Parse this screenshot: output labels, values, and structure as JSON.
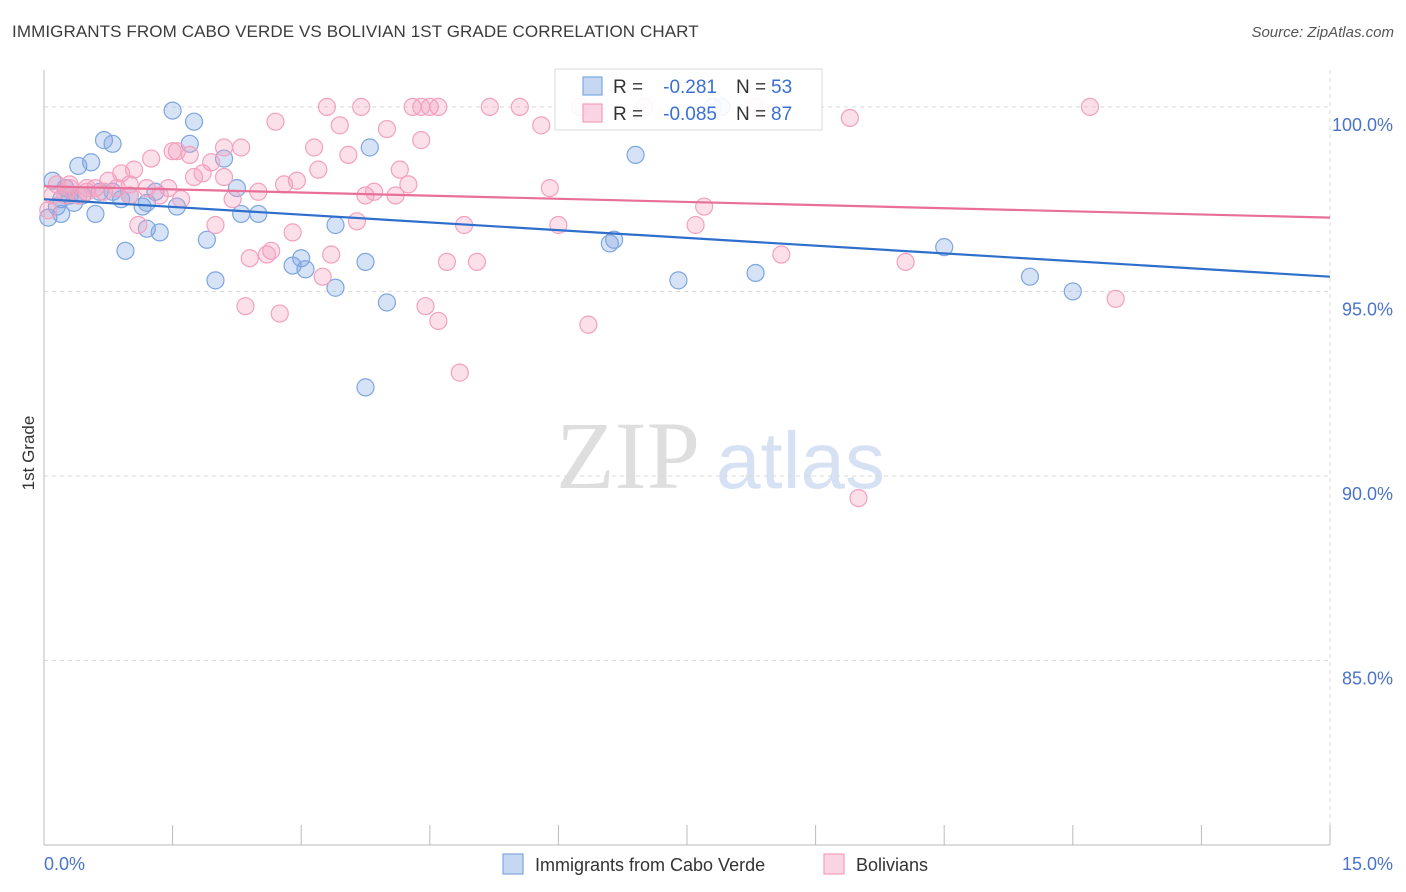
{
  "title": "IMMIGRANTS FROM CABO VERDE VS BOLIVIAN 1ST GRADE CORRELATION CHART",
  "source": "Source: ZipAtlas.com",
  "watermark": {
    "zip": "ZIP",
    "atlas": "atlas"
  },
  "chart_data": {
    "type": "scatter",
    "xlabel": "",
    "ylabel": "1st Grade",
    "xlim": [
      0.0,
      15.0
    ],
    "ylim": [
      80.0,
      101.0
    ],
    "x_tick_labels": [
      {
        "value": 0.0,
        "label": "0.0%"
      },
      {
        "value": 15.0,
        "label": "15.0%"
      }
    ],
    "x_minor_ticks": [
      1.5,
      3.0,
      4.5,
      6.0,
      7.5,
      9.0,
      10.5,
      12.0,
      13.5
    ],
    "y_ticks": [
      {
        "value": 100.0,
        "label": "100.0%"
      },
      {
        "value": 95.0,
        "label": "95.0%"
      },
      {
        "value": 90.0,
        "label": "90.0%"
      },
      {
        "value": 85.0,
        "label": "85.0%"
      }
    ],
    "grid": "horizontal dashed",
    "legend_position": "bottom-center",
    "series": [
      {
        "name": "Immigrants from Cabo Verde",
        "color": "#7ea6e0",
        "line_color": "#2e6fcc",
        "R": "-0.281",
        "N": "53",
        "trend": {
          "x0": 0.0,
          "y0": 97.5,
          "x1": 15.0,
          "y1": 95.4
        },
        "points": [
          [
            0.05,
            97.0
          ],
          [
            0.1,
            98.0
          ],
          [
            0.15,
            97.3
          ],
          [
            0.2,
            97.1
          ],
          [
            0.25,
            97.8
          ],
          [
            0.3,
            97.6
          ],
          [
            0.35,
            97.4
          ],
          [
            0.4,
            98.4
          ],
          [
            0.45,
            97.6
          ],
          [
            0.55,
            98.5
          ],
          [
            0.6,
            97.1
          ],
          [
            0.7,
            99.1
          ],
          [
            0.8,
            99.0
          ],
          [
            0.9,
            97.5
          ],
          [
            0.8,
            97.7
          ],
          [
            0.95,
            96.1
          ],
          [
            1.15,
            97.3
          ],
          [
            1.2,
            97.4
          ],
          [
            1.3,
            97.7
          ],
          [
            1.35,
            96.6
          ],
          [
            1.5,
            99.9
          ],
          [
            1.55,
            97.3
          ],
          [
            1.7,
            99.0
          ],
          [
            1.75,
            99.6
          ],
          [
            1.9,
            96.4
          ],
          [
            2.0,
            95.3
          ],
          [
            2.1,
            98.6
          ],
          [
            2.25,
            97.8
          ],
          [
            2.3,
            97.1
          ],
          [
            2.5,
            97.1
          ],
          [
            2.9,
            95.7
          ],
          [
            3.0,
            95.9
          ],
          [
            3.05,
            95.6
          ],
          [
            3.4,
            96.8
          ],
          [
            3.4,
            95.1
          ],
          [
            3.75,
            95.8
          ],
          [
            3.8,
            98.9
          ],
          [
            4.0,
            94.7
          ],
          [
            3.75,
            92.4
          ],
          [
            6.6,
            96.3
          ],
          [
            6.65,
            96.4
          ],
          [
            6.9,
            98.7
          ],
          [
            7.4,
            95.3
          ],
          [
            7.8,
            100.0
          ],
          [
            7.9,
            100.0
          ],
          [
            8.3,
            95.5
          ],
          [
            10.5,
            96.2
          ],
          [
            11.5,
            95.4
          ],
          [
            12.0,
            95.0
          ],
          [
            1.2,
            96.7
          ],
          [
            1.0,
            97.6
          ],
          [
            0.2,
            97.5
          ],
          [
            0.65,
            97.7
          ]
        ]
      },
      {
        "name": "Bolivians",
        "color": "#f4a0bf",
        "line_color": "#e86f98",
        "R": "-0.085",
        "N": "87",
        "trend": {
          "x0": 0.0,
          "y0": 97.85,
          "x1": 15.0,
          "y1": 97.0
        },
        "points": [
          [
            0.05,
            97.2
          ],
          [
            0.1,
            97.6
          ],
          [
            0.15,
            97.9
          ],
          [
            0.25,
            97.6
          ],
          [
            0.3,
            97.9
          ],
          [
            0.4,
            97.6
          ],
          [
            0.5,
            97.7
          ],
          [
            0.6,
            97.8
          ],
          [
            0.7,
            97.7
          ],
          [
            0.75,
            98.0
          ],
          [
            0.85,
            97.8
          ],
          [
            0.9,
            98.2
          ],
          [
            1.0,
            97.6
          ],
          [
            1.05,
            98.3
          ],
          [
            1.1,
            96.8
          ],
          [
            1.2,
            97.8
          ],
          [
            1.25,
            98.6
          ],
          [
            1.35,
            97.6
          ],
          [
            1.45,
            97.8
          ],
          [
            1.55,
            98.8
          ],
          [
            1.6,
            97.5
          ],
          [
            1.7,
            98.7
          ],
          [
            1.75,
            98.1
          ],
          [
            1.85,
            98.2
          ],
          [
            1.95,
            98.5
          ],
          [
            2.0,
            96.8
          ],
          [
            2.1,
            98.1
          ],
          [
            2.2,
            97.5
          ],
          [
            2.3,
            98.9
          ],
          [
            2.35,
            94.6
          ],
          [
            2.4,
            95.9
          ],
          [
            2.5,
            97.7
          ],
          [
            2.6,
            96.0
          ],
          [
            2.65,
            96.1
          ],
          [
            2.7,
            99.6
          ],
          [
            2.75,
            94.4
          ],
          [
            2.8,
            97.9
          ],
          [
            2.9,
            96.6
          ],
          [
            2.95,
            98.0
          ],
          [
            3.15,
            98.9
          ],
          [
            3.25,
            95.4
          ],
          [
            3.3,
            100.0
          ],
          [
            3.35,
            96.0
          ],
          [
            3.45,
            99.5
          ],
          [
            3.55,
            98.7
          ],
          [
            3.65,
            96.9
          ],
          [
            3.7,
            100.0
          ],
          [
            3.75,
            97.6
          ],
          [
            3.85,
            97.7
          ],
          [
            4.0,
            99.4
          ],
          [
            4.1,
            97.6
          ],
          [
            4.15,
            98.3
          ],
          [
            4.25,
            97.9
          ],
          [
            4.3,
            100.0
          ],
          [
            4.4,
            99.1
          ],
          [
            4.45,
            94.6
          ],
          [
            4.5,
            100.0
          ],
          [
            4.6,
            94.2
          ],
          [
            4.7,
            95.8
          ],
          [
            4.85,
            92.8
          ],
          [
            4.9,
            96.8
          ],
          [
            5.05,
            95.8
          ],
          [
            5.2,
            100.0
          ],
          [
            5.55,
            100.0
          ],
          [
            5.8,
            99.5
          ],
          [
            5.9,
            97.8
          ],
          [
            6.0,
            96.8
          ],
          [
            6.25,
            100.0
          ],
          [
            6.35,
            94.1
          ],
          [
            7.0,
            100.0
          ],
          [
            7.6,
            96.8
          ],
          [
            7.7,
            97.3
          ],
          [
            8.3,
            100.0
          ],
          [
            8.6,
            96.0
          ],
          [
            9.4,
            99.7
          ],
          [
            9.5,
            89.4
          ],
          [
            10.05,
            95.8
          ],
          [
            12.2,
            100.0
          ],
          [
            12.5,
            94.8
          ],
          [
            4.6,
            100.0
          ],
          [
            0.5,
            97.8
          ],
          [
            0.3,
            97.8
          ],
          [
            1.0,
            97.9
          ],
          [
            2.1,
            98.9
          ],
          [
            4.4,
            100.0
          ],
          [
            3.2,
            98.3
          ],
          [
            1.5,
            98.8
          ]
        ]
      }
    ]
  }
}
